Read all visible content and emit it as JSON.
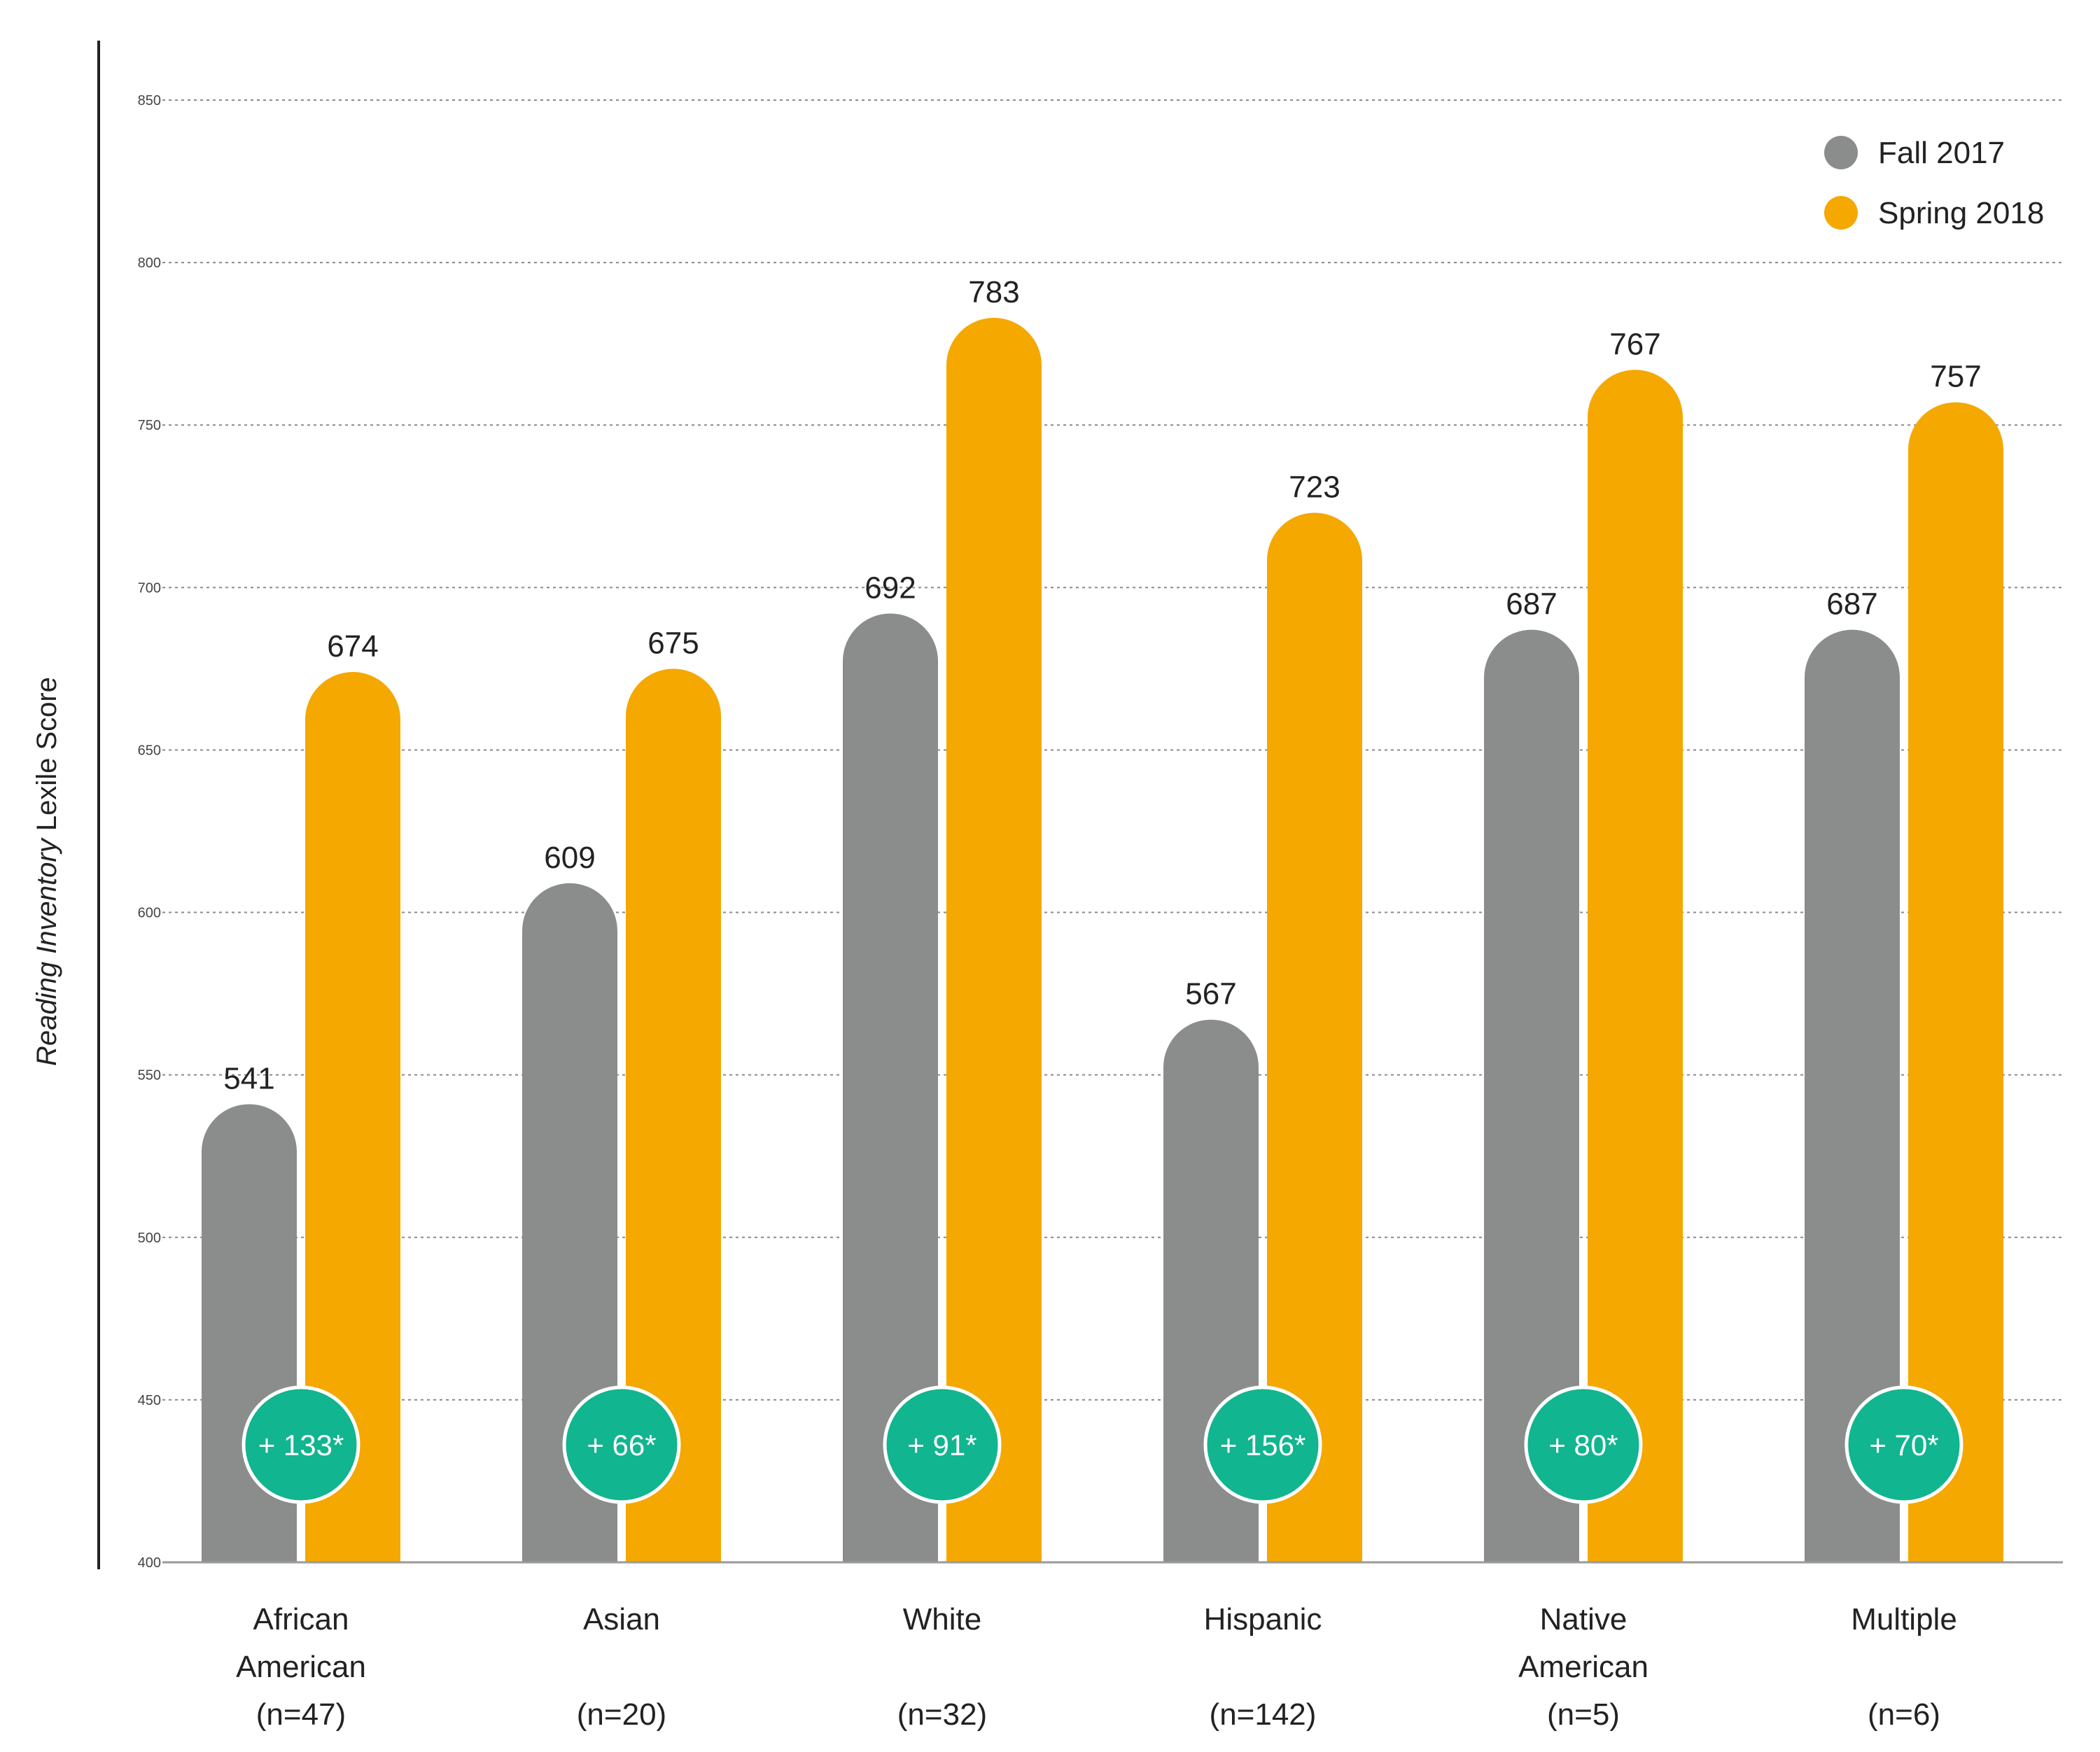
{
  "chart_data": {
    "type": "bar",
    "title": "",
    "ylabel_italic": "Reading Inventory",
    "ylabel_rest": " Lexile Score",
    "xlabel": "",
    "ylim": [
      400,
      850
    ],
    "yticks": [
      400,
      450,
      500,
      550,
      600,
      650,
      700,
      750,
      800,
      850
    ],
    "grid": true,
    "legend_position": "top-right",
    "categories": [
      {
        "name": [
          "African",
          "American"
        ],
        "n": "(n=47)",
        "gain": "+ 133*"
      },
      {
        "name": [
          "Asian"
        ],
        "n": "(n=20)",
        "gain": "+ 66*"
      },
      {
        "name": [
          "White"
        ],
        "n": "(n=32)",
        "gain": "+ 91*"
      },
      {
        "name": [
          "Hispanic"
        ],
        "n": "(n=142)",
        "gain": "+ 156*"
      },
      {
        "name": [
          "Native",
          "American"
        ],
        "n": "(n=5)",
        "gain": "+ 80*"
      },
      {
        "name": [
          "Multiple"
        ],
        "n": "(n=6)",
        "gain": "+ 70*"
      }
    ],
    "series": [
      {
        "name": "Fall 2017",
        "color": "#8a8d8c",
        "values": [
          541,
          609,
          692,
          567,
          687,
          687
        ]
      },
      {
        "name": "Spring 2018",
        "color": "#f4a800",
        "values": [
          674,
          675,
          783,
          723,
          767,
          757
        ]
      }
    ],
    "badge_color": "#11b58f"
  }
}
